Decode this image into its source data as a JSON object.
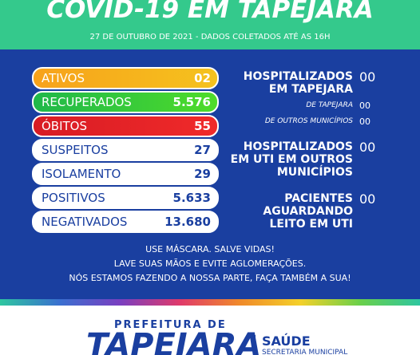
{
  "header": {
    "title": "COVID-19 EM TAPEJARA",
    "subtitle": "27 DE OUTUBRO DE 2021 - DADOS COLETADOS ATÉ AS 16H"
  },
  "stats": [
    {
      "label": "ATIVOS",
      "value": "02"
    },
    {
      "label": "RECUPERADOS",
      "value": "5.576"
    },
    {
      "label": "ÓBITOS",
      "value": "55"
    },
    {
      "label": "SUSPEITOS",
      "value": "27"
    },
    {
      "label": "ISOLAMENTO",
      "value": "29"
    },
    {
      "label": "POSITIVOS",
      "value": "5.633"
    },
    {
      "label": "NEGATIVADOS",
      "value": "13.680"
    }
  ],
  "hospital": [
    {
      "label": "HOSPITALIZADOS EM TAPEJARA",
      "value": "00"
    },
    {
      "label": "DE TAPEJARA",
      "value": "00"
    },
    {
      "label": "DE OUTROS MUNICÍPIOS",
      "value": "00"
    },
    {
      "label": "HOSPITALIZADOS EM UTI EM OUTROS MUNICÍPIOS",
      "value": "00"
    },
    {
      "label": "PACIENTES AGUARDANDO LEITO EM UTI",
      "value": "00"
    }
  ],
  "messages": [
    "USE MÁSCARA. SALVE VIDAS!",
    "LAVE SUAS MÃOS E EVITE AGLOMERAÇÕES.",
    "NÓS ESTAMOS FAZENDO A NOSSA PARTE, FAÇA TAMBÉM A SUA!"
  ],
  "footer": {
    "prefix": "PREFEITURA DE",
    "city": "TAPEJARA",
    "dept": "SAÚDE",
    "dept_sub": "SECRETARIA MUNICIPAL"
  }
}
